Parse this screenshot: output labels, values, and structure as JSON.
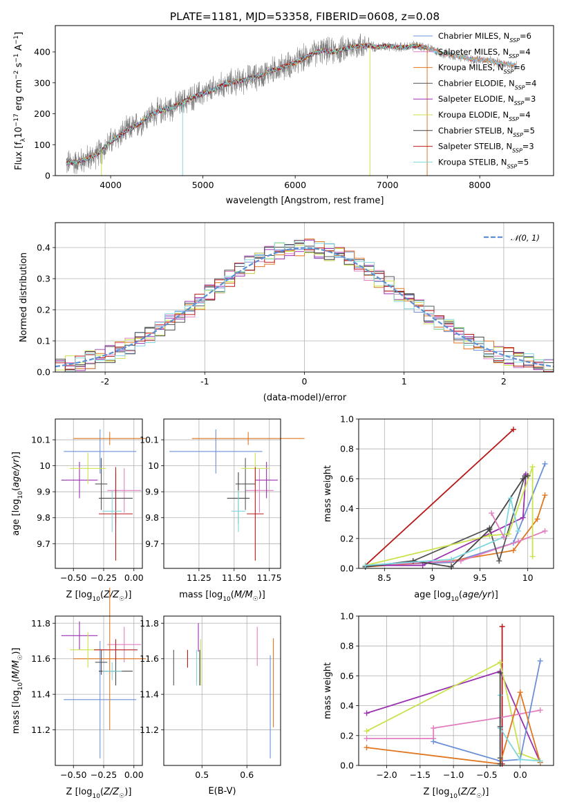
{
  "colors": {
    "Chabrier MILES": "#6a8fd8",
    "Salpeter MILES": "#e27ec0",
    "Kroupa MILES": "#e0761e",
    "Chabrier ELODIE": "#555555",
    "Salpeter ELODIE": "#9a2fb0",
    "Kroupa ELODIE": "#c9e34a",
    "Chabrier STELIB": "#444444",
    "Salpeter STELIB": "#b81818",
    "Kroupa STELIB": "#7fd6de",
    "data": "#7f7f7f",
    "gauss": "#5b8fd6"
  },
  "chart_data": [
    {
      "id": "spectrum",
      "type": "line",
      "title": "PLATE=1181, MJD=53358, FIBERID=0608, z=0.08",
      "xlabel": "wavelength [Angstrom, rest frame]",
      "ylabel": "Flux [f_λ 10⁻¹⁷ erg cm⁻² s⁻¹ A⁻¹]",
      "xlim": [
        3400,
        8800
      ],
      "ylim": [
        0,
        485
      ],
      "xticks": [
        4000,
        5000,
        6000,
        7000,
        8000
      ],
      "yticks": [
        0,
        100,
        200,
        300,
        400
      ],
      "grid": false,
      "legend_position": "right",
      "legend": [
        {
          "label": "Chabrier MILES, N",
          "sub": "SSP",
          "suffix": "=6"
        },
        {
          "label": "Salpeter MILES, N",
          "sub": "SSP",
          "suffix": "=4"
        },
        {
          "label": "Kroupa MILES, N",
          "sub": "SSP",
          "suffix": "=6"
        },
        {
          "label": "Chabrier ELODIE, N",
          "sub": "SSP",
          "suffix": "=4"
        },
        {
          "label": "Salpeter ELODIE, N",
          "sub": "SSP",
          "suffix": "=3"
        },
        {
          "label": "Kroupa ELODIE, N",
          "sub": "SSP",
          "suffix": "=4"
        },
        {
          "label": "Chabrier STELIB, N",
          "sub": "SSP",
          "suffix": "=5"
        },
        {
          "label": "Salpeter STELIB, N",
          "sub": "SSP",
          "suffix": "=3"
        },
        {
          "label": "Kroupa STELIB, N",
          "sub": "SSP",
          "suffix": "=5"
        }
      ],
      "continuum": [
        [
          3520,
          40
        ],
        [
          3650,
          45
        ],
        [
          3800,
          60
        ],
        [
          3900,
          80
        ],
        [
          4000,
          110
        ],
        [
          4100,
          130
        ],
        [
          4200,
          150
        ],
        [
          4300,
          165
        ],
        [
          4400,
          190
        ],
        [
          4500,
          205
        ],
        [
          4600,
          215
        ],
        [
          4700,
          225
        ],
        [
          4800,
          240
        ],
        [
          4900,
          255
        ],
        [
          5000,
          265
        ],
        [
          5100,
          275
        ],
        [
          5200,
          290
        ],
        [
          5300,
          300
        ],
        [
          5400,
          305
        ],
        [
          5500,
          315
        ],
        [
          5600,
          320
        ],
        [
          5700,
          335
        ],
        [
          5800,
          345
        ],
        [
          5900,
          355
        ],
        [
          6000,
          365
        ],
        [
          6100,
          380
        ],
        [
          6200,
          395
        ],
        [
          6300,
          405
        ],
        [
          6400,
          400
        ],
        [
          6500,
          405
        ],
        [
          6600,
          415
        ],
        [
          6700,
          420
        ],
        [
          6800,
          420
        ],
        [
          6900,
          415
        ],
        [
          7000,
          420
        ],
        [
          7100,
          415
        ],
        [
          7200,
          415
        ],
        [
          7300,
          420
        ],
        [
          7400,
          415
        ],
        [
          7500,
          405
        ],
        [
          7600,
          395
        ],
        [
          7700,
          390
        ],
        [
          7800,
          385
        ],
        [
          7900,
          375
        ],
        [
          8000,
          375
        ],
        [
          8100,
          370
        ],
        [
          8200,
          365
        ],
        [
          8300,
          360
        ],
        [
          8400,
          355
        ]
      ],
      "dropouts": [
        [
          4780,
          0
        ],
        [
          3900,
          0
        ],
        [
          6810,
          0
        ],
        [
          7430,
          0
        ]
      ]
    },
    {
      "id": "residual-histogram",
      "type": "bar",
      "xlabel": "(data-model)/error",
      "ylabel": "Normed distribution",
      "xlim": [
        -2.5,
        2.5
      ],
      "ylim": [
        0,
        0.48
      ],
      "xticks": [
        -2,
        -1,
        0,
        1,
        2
      ],
      "yticks": [
        0.0,
        0.1,
        0.2,
        0.3,
        0.4
      ],
      "grid": true,
      "legend_position": "top-right",
      "legend": "𝒩(0, 1)",
      "bin_width": 0.1
    },
    {
      "id": "age-vs-metallicity",
      "type": "scatter",
      "xlabel": "Z [log₁₀(Z/Z☉)]",
      "ylabel": "age  [log₁₀(age/yr)]",
      "xlim": [
        -0.65,
        0.07
      ],
      "ylim": [
        9.605,
        10.18
      ],
      "xticks": [
        -0.5,
        -0.25,
        0.0
      ],
      "xticklabels": [
        "−0.50",
        "−0.25",
        "0.00"
      ],
      "yticks": [
        9.7,
        9.8,
        9.9,
        10.0,
        10.1
      ],
      "grid": true,
      "points": [
        {
          "model": "Chabrier MILES",
          "x": -0.28,
          "xerr": 0.3,
          "y": 10.055,
          "yerr": 0.085
        },
        {
          "model": "Salpeter MILES",
          "x": -0.08,
          "xerr": 0.14,
          "y": 9.905,
          "yerr": 0.085
        },
        {
          "model": "Kroupa MILES",
          "x": -0.2,
          "xerr": 0.3,
          "y": 10.105,
          "yerr": 0.025
        },
        {
          "model": "Chabrier ELODIE",
          "x": -0.27,
          "xerr": 0.05,
          "y": 9.93,
          "yerr": 0.1
        },
        {
          "model": "Salpeter ELODIE",
          "x": -0.45,
          "xerr": 0.15,
          "y": 9.945,
          "yerr": 0.07
        },
        {
          "model": "Kroupa ELODIE",
          "x": -0.38,
          "xerr": 0.15,
          "y": 9.99,
          "yerr": 0.06
        },
        {
          "model": "Chabrier STELIB",
          "x": -0.15,
          "xerr": 0.14,
          "y": 9.875,
          "yerr": 0.1
        },
        {
          "model": "Salpeter STELIB",
          "x": -0.15,
          "xerr": 0.14,
          "y": 9.815,
          "yerr": 0.18
        },
        {
          "model": "Kroupa STELIB",
          "x": -0.18,
          "xerr": 0.08,
          "y": 9.825,
          "yerr": 0.08
        }
      ]
    },
    {
      "id": "age-vs-mass",
      "type": "scatter",
      "xlabel": "mass [log₁₀(M/M☉)]",
      "ylabel": "",
      "xlim": [
        11.0,
        11.83
      ],
      "ylim": [
        9.605,
        10.18
      ],
      "xticks": [
        11.25,
        11.5,
        11.75
      ],
      "xticklabels": [
        "11.25",
        "11.50",
        "11.75"
      ],
      "yticks": [
        9.7,
        9.8,
        9.9,
        10.0,
        10.1
      ],
      "grid": true,
      "points": [
        {
          "model": "Chabrier MILES",
          "x": 11.37,
          "xerr": 0.33,
          "y": 10.055,
          "yerr": 0.085
        },
        {
          "model": "Salpeter MILES",
          "x": 11.68,
          "xerr": 0.1,
          "y": 9.905,
          "yerr": 0.085
        },
        {
          "model": "Kroupa MILES",
          "x": 11.6,
          "xerr": 0.4,
          "y": 10.105,
          "yerr": 0.025
        },
        {
          "model": "Chabrier ELODIE",
          "x": 11.58,
          "xerr": 0.07,
          "y": 9.93,
          "yerr": 0.1
        },
        {
          "model": "Salpeter ELODIE",
          "x": 11.73,
          "xerr": 0.08,
          "y": 9.945,
          "yerr": 0.07
        },
        {
          "model": "Kroupa ELODIE",
          "x": 11.65,
          "xerr": 0.1,
          "y": 9.99,
          "yerr": 0.06
        },
        {
          "model": "Chabrier STELIB",
          "x": 11.53,
          "xerr": 0.08,
          "y": 9.875,
          "yerr": 0.1
        },
        {
          "model": "Salpeter STELIB",
          "x": 11.65,
          "xerr": 0.06,
          "y": 9.815,
          "yerr": 0.18
        },
        {
          "model": "Kroupa STELIB",
          "x": 11.53,
          "xerr": 0.05,
          "y": 9.825,
          "yerr": 0.08
        }
      ]
    },
    {
      "id": "mass-weight-vs-age",
      "type": "line",
      "xlabel": "age  [log₁₀(age/yr)]",
      "ylabel": "mass weight",
      "xlim": [
        8.23,
        10.27
      ],
      "ylim": [
        0.0,
        1.0
      ],
      "xticks": [
        8.5,
        9.0,
        9.5,
        10.0
      ],
      "yticks": [
        0.0,
        0.2,
        0.4,
        0.6,
        0.8,
        1.0
      ],
      "grid": true,
      "series": [
        {
          "model": "Salpeter STELIB",
          "x": [
            8.3,
            9.85
          ],
          "y": [
            0.02,
            0.93
          ]
        },
        {
          "model": "Chabrier MILES",
          "x": [
            8.3,
            9.2,
            9.85,
            10.18
          ],
          "y": [
            0.02,
            0.04,
            0.17,
            0.7
          ]
        },
        {
          "model": "Kroupa MILES",
          "x": [
            8.3,
            9.2,
            9.85,
            10.1,
            10.18
          ],
          "y": [
            0.01,
            0.05,
            0.12,
            0.33,
            0.49
          ]
        },
        {
          "model": "Salpeter MILES",
          "x": [
            8.3,
            9.3,
            9.9,
            10.18
          ],
          "y": [
            0.02,
            0.05,
            0.18,
            0.25
          ]
        },
        {
          "model": "Chabrier ELODIE",
          "x": [
            8.3,
            8.8,
            9.6,
            9.7,
            9.97
          ],
          "y": [
            0.01,
            0.05,
            0.27,
            0.05,
            0.62
          ]
        },
        {
          "model": "Salpeter ELODIE",
          "x": [
            8.3,
            8.9,
            9.95,
            9.98
          ],
          "y": [
            0.02,
            0.02,
            0.34,
            0.63
          ]
        },
        {
          "model": "Kroupa ELODIE",
          "x": [
            8.3,
            9.6,
            9.8,
            10.05,
            10.05
          ],
          "y": [
            0.02,
            0.22,
            0.23,
            0.68,
            0.08
          ]
        },
        {
          "model": "Chabrier STELIB",
          "x": [
            8.3,
            8.8,
            9.2,
            9.6,
            9.95,
            10.0
          ],
          "y": [
            0.01,
            0.05,
            0.01,
            0.26,
            0.6,
            0.62
          ]
        },
        {
          "model": "Kroupa STELIB",
          "x": [
            8.3,
            9.2,
            9.75,
            9.82,
            9.9
          ],
          "y": [
            0.02,
            0.06,
            0.21,
            0.47,
            0.25
          ]
        },
        {
          "model": "Salpeter MILES",
          "x": [
            9.62,
            9.75
          ],
          "y": [
            0.37,
            0.21
          ]
        }
      ]
    },
    {
      "id": "mass-vs-metallicity",
      "type": "scatter",
      "xlabel": "Z [log₁₀(Z/Z☉)]",
      "ylabel": "mass [log₁₀(M/M☉)]",
      "xlim": [
        -0.65,
        0.07
      ],
      "ylim": [
        11.0,
        11.84
      ],
      "xticks": [
        -0.5,
        -0.25,
        0.0
      ],
      "xticklabels": [
        "−0.50",
        "−0.25",
        "0.00"
      ],
      "yticks": [
        11.2,
        11.4,
        11.6,
        11.8
      ],
      "grid": true,
      "points": [
        {
          "model": "Chabrier MILES",
          "x": -0.28,
          "xerr": 0.3,
          "y": 11.37,
          "yerr": 0.33
        },
        {
          "model": "Salpeter MILES",
          "x": -0.08,
          "xerr": 0.14,
          "y": 11.68,
          "yerr": 0.1
        },
        {
          "model": "Kroupa MILES",
          "x": -0.2,
          "xerr": 0.3,
          "y": 11.6,
          "yerr": 0.4
        },
        {
          "model": "Chabrier ELODIE",
          "x": -0.27,
          "xerr": 0.05,
          "y": 11.58,
          "yerr": 0.07
        },
        {
          "model": "Salpeter ELODIE",
          "x": -0.45,
          "xerr": 0.15,
          "y": 11.73,
          "yerr": 0.08
        },
        {
          "model": "Kroupa ELODIE",
          "x": -0.38,
          "xerr": 0.15,
          "y": 11.65,
          "yerr": 0.1
        },
        {
          "model": "Chabrier STELIB",
          "x": -0.15,
          "xerr": 0.14,
          "y": 11.53,
          "yerr": 0.08
        },
        {
          "model": "Salpeter STELIB",
          "x": -0.15,
          "xerr": 0.18,
          "y": 11.65,
          "yerr": 0.06
        },
        {
          "model": "Kroupa STELIB",
          "x": -0.18,
          "xerr": 0.08,
          "y": 11.53,
          "yerr": 0.05
        }
      ]
    },
    {
      "id": "mass-vs-ebv",
      "type": "scatter",
      "xlabel": "E(B-V)",
      "ylabel": "",
      "xlim": [
        0.415,
        0.675
      ],
      "ylim": [
        11.0,
        11.84
      ],
      "xticks": [
        0.5,
        0.6
      ],
      "xticklabels": [
        "0.5",
        "0.6"
      ],
      "yticks": [
        11.2,
        11.4,
        11.6,
        11.8
      ],
      "grid": true,
      "points": [
        {
          "model": "Chabrier MILES",
          "x": 0.652,
          "xerr": 0,
          "y": 11.33,
          "yerr": 0.29
        },
        {
          "model": "Salpeter MILES",
          "x": 0.623,
          "xerr": 0,
          "y": 11.67,
          "yerr": 0.11
        },
        {
          "model": "Kroupa MILES",
          "x": 0.659,
          "xerr": 0,
          "y": 11.465,
          "yerr": 0.25
        },
        {
          "model": "Chabrier ELODIE",
          "x": 0.437,
          "xerr": 0,
          "y": 11.55,
          "yerr": 0.1
        },
        {
          "model": "Salpeter ELODIE",
          "x": 0.492,
          "xerr": 0,
          "y": 11.72,
          "yerr": 0.08
        },
        {
          "model": "Kroupa ELODIE",
          "x": 0.497,
          "xerr": 0,
          "y": 11.58,
          "yerr": 0.13
        },
        {
          "model": "Chabrier STELIB",
          "x": 0.495,
          "xerr": 0,
          "y": 11.55,
          "yerr": 0.1
        },
        {
          "model": "Salpeter STELIB",
          "x": 0.468,
          "xerr": 0,
          "y": 11.6,
          "yerr": 0.05
        },
        {
          "model": "Kroupa STELIB",
          "x": 0.488,
          "xerr": 0,
          "y": 11.55,
          "yerr": 0.1
        }
      ]
    },
    {
      "id": "mass-weight-vs-metallicity",
      "type": "line",
      "xlabel": "Z [log₁₀(Z/Z☉)]",
      "ylabel": "mass weight",
      "xlim": [
        -2.42,
        0.5
      ],
      "ylim": [
        0.0,
        1.0
      ],
      "xticks": [
        -2.0,
        -1.5,
        -1.0,
        -0.5,
        0.0
      ],
      "xticklabels": [
        "−2.0",
        "−1.5",
        "−1.0",
        "−0.5",
        "0.0"
      ],
      "yticks": [
        0.0,
        0.2,
        0.4,
        0.6,
        0.8,
        1.0
      ],
      "grid": true,
      "series": [
        {
          "model": "Salpeter STELIB",
          "x": [
            -0.27,
            -0.27
          ],
          "y": [
            0.93,
            0.01
          ]
        },
        {
          "model": "Salpeter ELODIE",
          "x": [
            -2.3,
            -0.3,
            0.3
          ],
          "y": [
            0.35,
            0.63,
            0.02
          ]
        },
        {
          "model": "Kroupa ELODIE",
          "x": [
            -2.3,
            -0.3,
            0.0,
            0.3
          ],
          "y": [
            0.23,
            0.69,
            0.08,
            0.03
          ]
        },
        {
          "model": "Salpeter MILES",
          "x": [
            -2.3,
            -1.3,
            -1.3,
            -0.3,
            0.3
          ],
          "y": [
            0.18,
            0.18,
            0.25,
            0.32,
            0.37
          ]
        },
        {
          "model": "Chabrier MILES",
          "x": [
            -1.3,
            -0.3,
            0.0,
            0.3
          ],
          "y": [
            0.16,
            0.03,
            0.04,
            0.7
          ]
        },
        {
          "model": "Kroupa MILES",
          "x": [
            -2.3,
            -0.3,
            0.0,
            0.3
          ],
          "y": [
            0.12,
            0.01,
            0.49,
            0.02
          ]
        },
        {
          "model": "Kroupa STELIB",
          "x": [
            -0.3,
            -0.3,
            0.0,
            0.3
          ],
          "y": [
            0.47,
            0.25,
            0.04,
            0.03
          ]
        },
        {
          "model": "Chabrier STELIB",
          "x": [
            -0.3,
            -0.3
          ],
          "y": [
            0.62,
            0.01
          ]
        },
        {
          "model": "Chabrier ELODIE",
          "x": [
            -0.3,
            -0.3
          ],
          "y": [
            0.26,
            0.05
          ]
        }
      ]
    }
  ]
}
